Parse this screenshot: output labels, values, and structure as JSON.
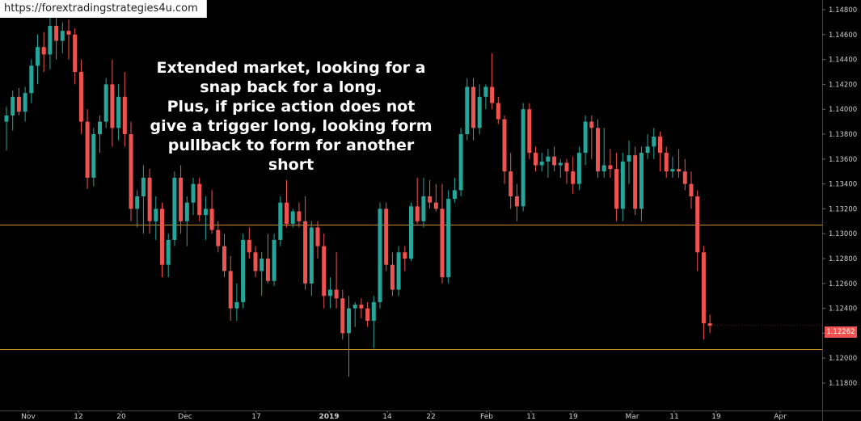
{
  "source_url": "https://forextradingstrategies4u.com",
  "annotation": "Extended market, looking for a\nsnap back for a long.\nPlus, if price action does not\ngive a trigger long, looking form\npullback to form for another\nshort",
  "current_price_label": "1.12262",
  "colors": {
    "background": "#000000",
    "bullish": "#26a69a",
    "bearish": "#ef5350",
    "level_line": "#c78a2c",
    "axis_text": "#cfcfcf",
    "price_badge": "#ef5350"
  },
  "chart_data": {
    "type": "candlestick",
    "ylim": [
      1.1175,
      1.1485
    ],
    "y_ticks": [
      "1.11800",
      "1.12000",
      "1.12200",
      "1.12400",
      "1.12600",
      "1.12800",
      "1.13000",
      "1.13200",
      "1.13400",
      "1.13600",
      "1.13800",
      "1.14000",
      "1.14200",
      "1.14400",
      "1.14600",
      "1.14800"
    ],
    "x_labels": [
      "Nov",
      "12",
      "20",
      "Dec",
      "17",
      "2019",
      "14",
      "22",
      "Feb",
      "11",
      "19",
      "Mar",
      "11",
      "19",
      "Apr"
    ],
    "horizontal_levels": [
      1.1307,
      1.1207
    ],
    "current_price": 1.12262,
    "candles": [
      [
        1.139,
        1.1402,
        1.1367,
        1.1395
      ],
      [
        1.1395,
        1.1415,
        1.1383,
        1.141
      ],
      [
        1.141,
        1.1417,
        1.1395,
        1.1398
      ],
      [
        1.1398,
        1.1418,
        1.139,
        1.1413
      ],
      [
        1.1413,
        1.144,
        1.1405,
        1.1435
      ],
      [
        1.1435,
        1.146,
        1.142,
        1.145
      ],
      [
        1.145,
        1.1462,
        1.143,
        1.1444
      ],
      [
        1.1444,
        1.1475,
        1.1432,
        1.1467
      ],
      [
        1.1467,
        1.148,
        1.144,
        1.1455
      ],
      [
        1.1455,
        1.147,
        1.1445,
        1.1463
      ],
      [
        1.1463,
        1.1472,
        1.144,
        1.146
      ],
      [
        1.146,
        1.1465,
        1.142,
        1.143
      ],
      [
        1.143,
        1.144,
        1.138,
        1.139
      ],
      [
        1.139,
        1.14,
        1.1336,
        1.1345
      ],
      [
        1.1345,
        1.1385,
        1.1338,
        1.138
      ],
      [
        1.138,
        1.1395,
        1.1365,
        1.139
      ],
      [
        1.139,
        1.1425,
        1.1385,
        1.142
      ],
      [
        1.142,
        1.144,
        1.137,
        1.1385
      ],
      [
        1.1385,
        1.142,
        1.1375,
        1.141
      ],
      [
        1.141,
        1.143,
        1.137,
        1.138
      ],
      [
        1.138,
        1.139,
        1.131,
        1.132
      ],
      [
        1.132,
        1.1335,
        1.1305,
        1.133
      ],
      [
        1.133,
        1.1355,
        1.13,
        1.1345
      ],
      [
        1.1345,
        1.1352,
        1.13,
        1.131
      ],
      [
        1.131,
        1.133,
        1.1295,
        1.132
      ],
      [
        1.132,
        1.1325,
        1.1265,
        1.1275
      ],
      [
        1.1275,
        1.13,
        1.1265,
        1.1295
      ],
      [
        1.1295,
        1.135,
        1.129,
        1.1345
      ],
      [
        1.1345,
        1.1355,
        1.13,
        1.131
      ],
      [
        1.131,
        1.133,
        1.129,
        1.1325
      ],
      [
        1.1325,
        1.1345,
        1.1315,
        1.134
      ],
      [
        1.134,
        1.1345,
        1.131,
        1.1315
      ],
      [
        1.1315,
        1.133,
        1.1295,
        1.132
      ],
      [
        1.132,
        1.1335,
        1.13,
        1.1303
      ],
      [
        1.1303,
        1.131,
        1.1285,
        1.129
      ],
      [
        1.129,
        1.13,
        1.1265,
        1.127
      ],
      [
        1.127,
        1.1282,
        1.123,
        1.124
      ],
      [
        1.124,
        1.126,
        1.123,
        1.1245
      ],
      [
        1.1245,
        1.13,
        1.124,
        1.1295
      ],
      [
        1.1295,
        1.1305,
        1.128,
        1.1285
      ],
      [
        1.1285,
        1.129,
        1.1265,
        1.127
      ],
      [
        1.127,
        1.1285,
        1.125,
        1.128
      ],
      [
        1.128,
        1.13,
        1.126,
        1.1262
      ],
      [
        1.1262,
        1.13,
        1.1258,
        1.1295
      ],
      [
        1.1295,
        1.133,
        1.129,
        1.1325
      ],
      [
        1.1325,
        1.1343,
        1.1305,
        1.1308
      ],
      [
        1.1308,
        1.132,
        1.1305,
        1.1318
      ],
      [
        1.1318,
        1.1325,
        1.1305,
        1.131
      ],
      [
        1.131,
        1.133,
        1.1255,
        1.126
      ],
      [
        1.126,
        1.131,
        1.125,
        1.1305
      ],
      [
        1.1305,
        1.131,
        1.128,
        1.129
      ],
      [
        1.129,
        1.13,
        1.124,
        1.125
      ],
      [
        1.125,
        1.1265,
        1.124,
        1.1255
      ],
      [
        1.1255,
        1.1285,
        1.124,
        1.1248
      ],
      [
        1.1248,
        1.1255,
        1.1215,
        1.122
      ],
      [
        1.122,
        1.125,
        1.1185,
        1.124
      ],
      [
        1.124,
        1.1245,
        1.1225,
        1.1243
      ],
      [
        1.1243,
        1.1248,
        1.1232,
        1.124
      ],
      [
        1.124,
        1.1245,
        1.1225,
        1.123
      ],
      [
        1.123,
        1.125,
        1.1208,
        1.1245
      ],
      [
        1.1245,
        1.1325,
        1.124,
        1.132
      ],
      [
        1.132,
        1.1325,
        1.127,
        1.1275
      ],
      [
        1.1275,
        1.1285,
        1.125,
        1.1255
      ],
      [
        1.1255,
        1.129,
        1.125,
        1.1285
      ],
      [
        1.1285,
        1.129,
        1.127,
        1.128
      ],
      [
        1.128,
        1.1325,
        1.1278,
        1.1322
      ],
      [
        1.1322,
        1.1345,
        1.1308,
        1.131
      ],
      [
        1.131,
        1.1345,
        1.1305,
        1.133
      ],
      [
        1.133,
        1.1343,
        1.132,
        1.1325
      ],
      [
        1.1325,
        1.134,
        1.1318,
        1.132
      ],
      [
        1.132,
        1.134,
        1.126,
        1.1265
      ],
      [
        1.1265,
        1.1335,
        1.126,
        1.1328
      ],
      [
        1.1328,
        1.1345,
        1.1325,
        1.1335
      ],
      [
        1.1335,
        1.1385,
        1.133,
        1.138
      ],
      [
        1.138,
        1.1425,
        1.1375,
        1.1418
      ],
      [
        1.1418,
        1.1425,
        1.1375,
        1.1385
      ],
      [
        1.1385,
        1.142,
        1.138,
        1.141
      ],
      [
        1.141,
        1.142,
        1.14,
        1.1418
      ],
      [
        1.1418,
        1.1445,
        1.14,
        1.1405
      ],
      [
        1.1405,
        1.141,
        1.1388,
        1.1392
      ],
      [
        1.1392,
        1.1395,
        1.134,
        1.135
      ],
      [
        1.135,
        1.1365,
        1.132,
        1.133
      ],
      [
        1.133,
        1.134,
        1.131,
        1.1322
      ],
      [
        1.1322,
        1.1405,
        1.1318,
        1.14
      ],
      [
        1.14,
        1.1405,
        1.136,
        1.1365
      ],
      [
        1.1365,
        1.137,
        1.135,
        1.1355
      ],
      [
        1.1355,
        1.1365,
        1.135,
        1.1358
      ],
      [
        1.1358,
        1.1368,
        1.1345,
        1.1362
      ],
      [
        1.1362,
        1.137,
        1.135,
        1.1355
      ],
      [
        1.1355,
        1.136,
        1.1345,
        1.1357
      ],
      [
        1.1357,
        1.136,
        1.134,
        1.135
      ],
      [
        1.135,
        1.1362,
        1.1332,
        1.134
      ],
      [
        1.134,
        1.137,
        1.1335,
        1.1365
      ],
      [
        1.1365,
        1.1395,
        1.1355,
        1.139
      ],
      [
        1.139,
        1.1395,
        1.136,
        1.1385
      ],
      [
        1.1385,
        1.1392,
        1.1345,
        1.135
      ],
      [
        1.135,
        1.1385,
        1.1345,
        1.1355
      ],
      [
        1.1355,
        1.1368,
        1.1345,
        1.1352
      ],
      [
        1.1352,
        1.1365,
        1.131,
        1.132
      ],
      [
        1.132,
        1.1365,
        1.131,
        1.1358
      ],
      [
        1.1358,
        1.1375,
        1.134,
        1.1363
      ],
      [
        1.1363,
        1.137,
        1.1315,
        1.132
      ],
      [
        1.132,
        1.137,
        1.131,
        1.1365
      ],
      [
        1.1365,
        1.138,
        1.136,
        1.137
      ],
      [
        1.137,
        1.1385,
        1.136,
        1.1378
      ],
      [
        1.1378,
        1.1382,
        1.135,
        1.1365
      ],
      [
        1.1365,
        1.137,
        1.1345,
        1.135
      ],
      [
        1.135,
        1.1362,
        1.1345,
        1.1352
      ],
      [
        1.1352,
        1.1368,
        1.1345,
        1.135
      ],
      [
        1.135,
        1.136,
        1.1335,
        1.134
      ],
      [
        1.134,
        1.135,
        1.132,
        1.133
      ],
      [
        1.133,
        1.1335,
        1.127,
        1.1285
      ],
      [
        1.1285,
        1.129,
        1.1215,
        1.1228
      ],
      [
        1.1228,
        1.1235,
        1.122,
        1.1226
      ]
    ]
  }
}
